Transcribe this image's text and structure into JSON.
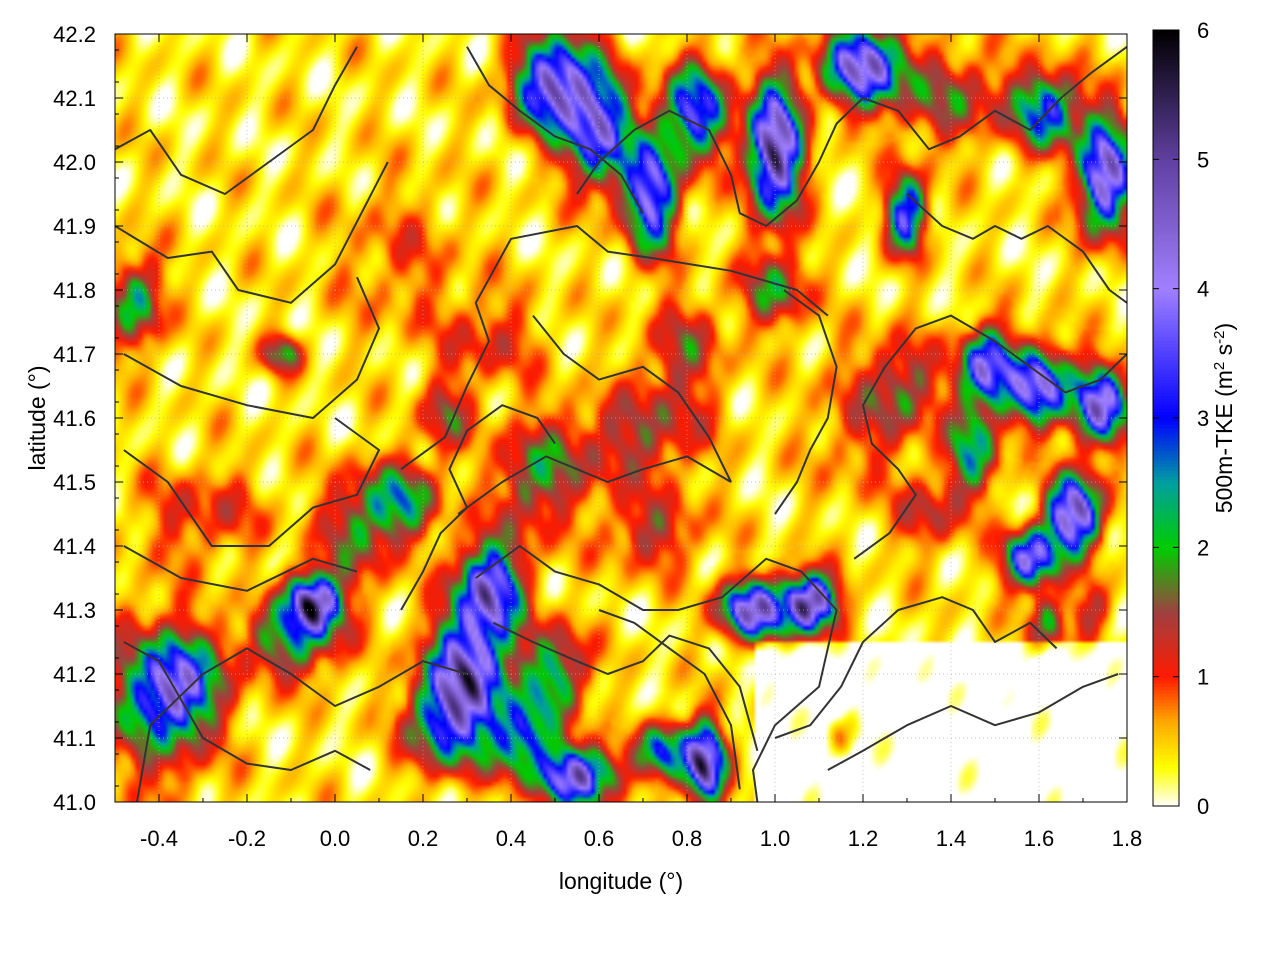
{
  "chart_data": {
    "type": "heatmap",
    "title": "",
    "xlabel": "longitude (°)",
    "ylabel": "latitude (°)",
    "colorbar_label": "500m-TKE (m² s⁻²)",
    "colorbar_label_parts": {
      "main": "500m-TKE (m",
      "sup1": "2",
      "mid": " s",
      "sup2": "-2",
      "end": ")"
    },
    "xlim": [
      -0.5,
      1.8
    ],
    "ylim": [
      41.0,
      42.2
    ],
    "clim": [
      0,
      6
    ],
    "grid": true,
    "x_ticks": [
      -0.4,
      -0.2,
      0.0,
      0.2,
      0.4,
      0.6,
      0.8,
      1.0,
      1.2,
      1.4,
      1.6,
      1.8
    ],
    "x_tick_labels": [
      "-0.4",
      "-0.2",
      "0.0",
      "0.2",
      "0.4",
      "0.6",
      "0.8",
      "1.0",
      "1.2",
      "1.4",
      "1.6",
      "1.8"
    ],
    "y_ticks": [
      41.0,
      41.1,
      41.2,
      41.3,
      41.4,
      41.5,
      41.6,
      41.7,
      41.8,
      41.9,
      42.0,
      42.1,
      42.2
    ],
    "y_tick_labels": [
      "41.0",
      "41.1",
      "41.2",
      "41.3",
      "41.4",
      "41.5",
      "41.6",
      "41.7",
      "41.8",
      "41.9",
      "42.0",
      "42.1",
      "42.2"
    ],
    "colorbar_ticks": [
      0,
      1,
      2,
      3,
      4,
      5,
      6
    ],
    "colorbar_tick_labels": [
      "0",
      "1",
      "2",
      "3",
      "4",
      "5",
      "6"
    ],
    "colormap": [
      {
        "value": 0.0,
        "color": "#ffffff"
      },
      {
        "value": 0.3,
        "color": "#ffff00"
      },
      {
        "value": 0.65,
        "color": "#ffaa00"
      },
      {
        "value": 1.0,
        "color": "#ff1a00"
      },
      {
        "value": 1.5,
        "color": "#a04040"
      },
      {
        "value": 2.0,
        "color": "#00cc00"
      },
      {
        "value": 2.5,
        "color": "#00a0a0"
      },
      {
        "value": 3.0,
        "color": "#0000ff"
      },
      {
        "value": 4.0,
        "color": "#a080ff"
      },
      {
        "value": 5.0,
        "color": "#6040a0"
      },
      {
        "value": 6.0,
        "color": "#000000"
      }
    ],
    "tke_hotspots": [
      {
        "lon": -0.36,
        "lat": 41.18,
        "tke": 3.8,
        "sx": 0.06,
        "sy": 0.05
      },
      {
        "lon": -0.42,
        "lat": 41.15,
        "tke": 1.4,
        "sx": 0.1,
        "sy": 0.1
      },
      {
        "lon": -0.05,
        "lat": 41.31,
        "tke": 5.8,
        "sx": 0.04,
        "sy": 0.03
      },
      {
        "lon": -0.1,
        "lat": 41.25,
        "tke": 2.0,
        "sx": 0.08,
        "sy": 0.04
      },
      {
        "lon": 0.05,
        "lat": 41.42,
        "tke": 1.5,
        "sx": 0.06,
        "sy": 0.06
      },
      {
        "lon": 0.3,
        "lat": 41.2,
        "tke": 4.8,
        "sx": 0.06,
        "sy": 0.06
      },
      {
        "lon": 0.35,
        "lat": 41.33,
        "tke": 4.6,
        "sx": 0.05,
        "sy": 0.05
      },
      {
        "lon": 0.25,
        "lat": 41.12,
        "tke": 2.6,
        "sx": 0.06,
        "sy": 0.05
      },
      {
        "lon": 0.42,
        "lat": 41.1,
        "tke": 3.0,
        "sx": 0.05,
        "sy": 0.04
      },
      {
        "lon": 0.55,
        "lat": 41.04,
        "tke": 4.8,
        "sx": 0.06,
        "sy": 0.03
      },
      {
        "lon": 0.5,
        "lat": 41.2,
        "tke": 2.4,
        "sx": 0.05,
        "sy": 0.05
      },
      {
        "lon": 0.84,
        "lat": 41.06,
        "tke": 5.6,
        "sx": 0.03,
        "sy": 0.04
      },
      {
        "lon": 0.75,
        "lat": 41.08,
        "tke": 3.0,
        "sx": 0.04,
        "sy": 0.03
      },
      {
        "lon": 1.08,
        "lat": 41.31,
        "tke": 5.8,
        "sx": 0.04,
        "sy": 0.03
      },
      {
        "lon": 0.95,
        "lat": 41.3,
        "tke": 5.0,
        "sx": 0.05,
        "sy": 0.03
      },
      {
        "lon": 0.72,
        "lat": 41.42,
        "tke": 1.2,
        "sx": 0.08,
        "sy": 0.04
      },
      {
        "lon": 0.45,
        "lat": 41.5,
        "tke": 1.6,
        "sx": 0.06,
        "sy": 0.06
      },
      {
        "lon": 0.15,
        "lat": 41.47,
        "tke": 2.2,
        "sx": 0.06,
        "sy": 0.04
      },
      {
        "lon": 0.6,
        "lat": 41.55,
        "tke": 1.0,
        "sx": 0.1,
        "sy": 0.05
      },
      {
        "lon": 0.75,
        "lat": 41.6,
        "tke": 1.0,
        "sx": 0.08,
        "sy": 0.06
      },
      {
        "lon": 0.8,
        "lat": 41.72,
        "tke": 1.1,
        "sx": 0.06,
        "sy": 0.05
      },
      {
        "lon": 1.0,
        "lat": 41.8,
        "tke": 1.8,
        "sx": 0.05,
        "sy": 0.04
      },
      {
        "lon": 0.35,
        "lat": 41.72,
        "tke": 0.9,
        "sx": 0.08,
        "sy": 0.05
      },
      {
        "lon": 0.15,
        "lat": 41.85,
        "tke": 0.6,
        "sx": 0.1,
        "sy": 0.08
      },
      {
        "lon": -0.45,
        "lat": 41.78,
        "tke": 2.2,
        "sx": 0.04,
        "sy": 0.05
      },
      {
        "lon": -0.12,
        "lat": 41.7,
        "tke": 1.8,
        "sx": 0.03,
        "sy": 0.02
      },
      {
        "lon": 0.5,
        "lat": 42.12,
        "tke": 4.8,
        "sx": 0.06,
        "sy": 0.05
      },
      {
        "lon": 0.6,
        "lat": 42.05,
        "tke": 4.0,
        "sx": 0.05,
        "sy": 0.06
      },
      {
        "lon": 0.72,
        "lat": 41.95,
        "tke": 4.2,
        "sx": 0.04,
        "sy": 0.06
      },
      {
        "lon": 0.82,
        "lat": 42.08,
        "tke": 3.6,
        "sx": 0.05,
        "sy": 0.05
      },
      {
        "lon": 1.0,
        "lat": 42.02,
        "tke": 5.7,
        "sx": 0.04,
        "sy": 0.07
      },
      {
        "lon": 1.2,
        "lat": 42.15,
        "tke": 4.8,
        "sx": 0.06,
        "sy": 0.04
      },
      {
        "lon": 1.4,
        "lat": 42.1,
        "tke": 1.4,
        "sx": 0.1,
        "sy": 0.05
      },
      {
        "lon": 1.62,
        "lat": 42.08,
        "tke": 3.2,
        "sx": 0.05,
        "sy": 0.04
      },
      {
        "lon": 1.75,
        "lat": 41.98,
        "tke": 5.0,
        "sx": 0.04,
        "sy": 0.06
      },
      {
        "lon": 1.3,
        "lat": 41.92,
        "tke": 3.8,
        "sx": 0.03,
        "sy": 0.04
      },
      {
        "lon": 1.48,
        "lat": 41.68,
        "tke": 4.2,
        "sx": 0.04,
        "sy": 0.04
      },
      {
        "lon": 1.6,
        "lat": 41.65,
        "tke": 4.4,
        "sx": 0.05,
        "sy": 0.04
      },
      {
        "lon": 1.74,
        "lat": 41.62,
        "tke": 4.6,
        "sx": 0.04,
        "sy": 0.04
      },
      {
        "lon": 1.68,
        "lat": 41.45,
        "tke": 5.4,
        "sx": 0.04,
        "sy": 0.04
      },
      {
        "lon": 1.58,
        "lat": 41.38,
        "tke": 4.4,
        "sx": 0.04,
        "sy": 0.03
      },
      {
        "lon": 1.45,
        "lat": 41.55,
        "tke": 2.4,
        "sx": 0.04,
        "sy": 0.05
      },
      {
        "lon": 1.3,
        "lat": 41.65,
        "tke": 1.4,
        "sx": 0.05,
        "sy": 0.05
      },
      {
        "lon": 1.35,
        "lat": 41.45,
        "tke": 1.2,
        "sx": 0.05,
        "sy": 0.04
      },
      {
        "lon": 1.62,
        "lat": 41.28,
        "tke": 1.8,
        "sx": 0.03,
        "sy": 0.03
      },
      {
        "lon": 1.72,
        "lat": 41.3,
        "tke": 1.2,
        "sx": 0.03,
        "sy": 0.03
      },
      {
        "lon": 0.25,
        "lat": 41.6,
        "tke": 1.4,
        "sx": 0.04,
        "sy": 0.04
      },
      {
        "lon": -0.3,
        "lat": 41.45,
        "tke": 0.9,
        "sx": 0.1,
        "sy": 0.05
      },
      {
        "lon": 1.2,
        "lat": 41.6,
        "tke": 0.8,
        "sx": 0.08,
        "sy": 0.08
      },
      {
        "lon": 1.15,
        "lat": 41.1,
        "tke": 0.9,
        "sx": 0.03,
        "sy": 0.03
      }
    ],
    "contour_lines": [
      [
        [
          -0.45,
          41.0
        ],
        [
          -0.42,
          41.12
        ],
        [
          -0.3,
          41.2
        ],
        [
          -0.2,
          41.24
        ],
        [
          -0.1,
          41.2
        ],
        [
          0.0,
          41.15
        ],
        [
          0.1,
          41.18
        ],
        [
          0.2,
          41.22
        ],
        [
          0.3,
          41.2
        ]
      ],
      [
        [
          -0.48,
          41.4
        ],
        [
          -0.35,
          41.35
        ],
        [
          -0.2,
          41.33
        ],
        [
          -0.05,
          41.38
        ],
        [
          0.05,
          41.36
        ]
      ],
      [
        [
          -0.48,
          41.55
        ],
        [
          -0.38,
          41.5
        ],
        [
          -0.28,
          41.4
        ],
        [
          -0.15,
          41.4
        ],
        [
          -0.05,
          41.46
        ],
        [
          0.05,
          41.48
        ],
        [
          0.1,
          41.55
        ],
        [
          0.0,
          41.6
        ]
      ],
      [
        [
          -0.48,
          41.7
        ],
        [
          -0.35,
          41.65
        ],
        [
          -0.2,
          41.62
        ],
        [
          -0.05,
          41.6
        ],
        [
          0.05,
          41.66
        ],
        [
          0.1,
          41.74
        ],
        [
          0.05,
          41.82
        ]
      ],
      [
        [
          -0.5,
          41.9
        ],
        [
          -0.38,
          41.85
        ],
        [
          -0.28,
          41.86
        ],
        [
          -0.22,
          41.8
        ],
        [
          -0.1,
          41.78
        ],
        [
          0.0,
          41.84
        ],
        [
          0.06,
          41.92
        ],
        [
          0.12,
          42.0
        ]
      ],
      [
        [
          -0.5,
          42.02
        ],
        [
          -0.42,
          42.05
        ],
        [
          -0.35,
          41.98
        ],
        [
          -0.25,
          41.95
        ],
        [
          -0.15,
          42.0
        ],
        [
          -0.05,
          42.05
        ],
        [
          0.0,
          42.12
        ],
        [
          0.05,
          42.18
        ]
      ],
      [
        [
          0.15,
          41.52
        ],
        [
          0.25,
          41.57
        ],
        [
          0.3,
          41.65
        ],
        [
          0.35,
          41.72
        ],
        [
          0.32,
          41.78
        ],
        [
          0.4,
          41.88
        ],
        [
          0.55,
          41.9
        ],
        [
          0.62,
          41.86
        ],
        [
          0.72,
          41.85
        ],
        [
          0.9,
          41.83
        ],
        [
          1.05,
          41.8
        ],
        [
          1.12,
          41.76
        ]
      ],
      [
        [
          0.45,
          41.76
        ],
        [
          0.52,
          41.7
        ],
        [
          0.6,
          41.66
        ],
        [
          0.7,
          41.68
        ],
        [
          0.78,
          41.64
        ],
        [
          0.85,
          41.57
        ],
        [
          0.9,
          41.5
        ]
      ],
      [
        [
          0.28,
          41.45
        ],
        [
          0.38,
          41.5
        ],
        [
          0.48,
          41.54
        ],
        [
          0.55,
          41.52
        ],
        [
          0.62,
          41.5
        ],
        [
          0.7,
          41.52
        ],
        [
          0.8,
          41.54
        ],
        [
          0.9,
          41.5
        ]
      ],
      [
        [
          0.32,
          41.35
        ],
        [
          0.42,
          41.4
        ],
        [
          0.5,
          41.36
        ],
        [
          0.6,
          41.34
        ],
        [
          0.7,
          41.3
        ],
        [
          0.78,
          41.3
        ],
        [
          0.88,
          41.32
        ],
        [
          0.98,
          41.38
        ],
        [
          1.06,
          41.36
        ],
        [
          1.14,
          41.3
        ],
        [
          1.1,
          41.18
        ],
        [
          1.0,
          41.12
        ],
        [
          0.95,
          41.05
        ],
        [
          0.96,
          41.0
        ]
      ],
      [
        [
          0.36,
          41.28
        ],
        [
          0.45,
          41.25
        ],
        [
          0.55,
          41.22
        ],
        [
          0.62,
          41.2
        ],
        [
          0.7,
          41.22
        ],
        [
          0.76,
          41.26
        ],
        [
          0.85,
          41.24
        ],
        [
          0.92,
          41.18
        ],
        [
          0.96,
          41.08
        ]
      ],
      [
        [
          0.6,
          41.3
        ],
        [
          0.68,
          41.28
        ],
        [
          0.76,
          41.24
        ],
        [
          0.84,
          41.2
        ],
        [
          0.9,
          41.12
        ],
        [
          0.92,
          41.02
        ]
      ],
      [
        [
          1.0,
          41.1
        ],
        [
          1.08,
          41.12
        ],
        [
          1.15,
          41.18
        ],
        [
          1.2,
          41.25
        ],
        [
          1.28,
          41.3
        ],
        [
          1.38,
          41.32
        ],
        [
          1.45,
          41.3
        ],
        [
          1.5,
          41.25
        ],
        [
          1.58,
          41.28
        ],
        [
          1.64,
          41.24
        ]
      ],
      [
        [
          1.12,
          41.05
        ],
        [
          1.2,
          41.08
        ],
        [
          1.3,
          41.12
        ],
        [
          1.4,
          41.15
        ],
        [
          1.5,
          41.12
        ],
        [
          1.6,
          41.14
        ],
        [
          1.7,
          41.18
        ],
        [
          1.78,
          41.2
        ]
      ],
      [
        [
          1.18,
          41.38
        ],
        [
          1.26,
          41.42
        ],
        [
          1.32,
          41.48
        ],
        [
          1.28,
          41.52
        ],
        [
          1.22,
          41.56
        ],
        [
          1.2,
          41.62
        ],
        [
          1.25,
          41.68
        ],
        [
          1.32,
          41.74
        ],
        [
          1.4,
          41.76
        ],
        [
          1.5,
          41.72
        ],
        [
          1.58,
          41.68
        ],
        [
          1.66,
          41.64
        ],
        [
          1.74,
          41.66
        ],
        [
          1.8,
          41.7
        ]
      ],
      [
        [
          1.0,
          41.45
        ],
        [
          1.05,
          41.5
        ],
        [
          1.08,
          41.55
        ],
        [
          1.12,
          41.6
        ],
        [
          1.14,
          41.68
        ],
        [
          1.1,
          41.76
        ],
        [
          1.02,
          41.8
        ]
      ],
      [
        [
          0.55,
          41.95
        ],
        [
          0.6,
          42.0
        ],
        [
          0.68,
          42.05
        ],
        [
          0.76,
          42.08
        ],
        [
          0.85,
          42.05
        ],
        [
          0.9,
          41.98
        ],
        [
          0.92,
          41.92
        ],
        [
          0.98,
          41.9
        ],
        [
          1.05,
          41.94
        ],
        [
          1.1,
          42.0
        ],
        [
          1.14,
          42.06
        ],
        [
          1.2,
          42.1
        ],
        [
          1.28,
          42.08
        ],
        [
          1.35,
          42.02
        ],
        [
          1.42,
          42.04
        ],
        [
          1.5,
          42.08
        ],
        [
          1.58,
          42.05
        ],
        [
          1.65,
          42.1
        ],
        [
          1.72,
          42.14
        ],
        [
          1.8,
          42.18
        ]
      ],
      [
        [
          0.3,
          42.18
        ],
        [
          0.35,
          42.12
        ],
        [
          0.42,
          42.08
        ],
        [
          0.5,
          42.04
        ],
        [
          0.58,
          42.02
        ],
        [
          0.65,
          41.98
        ],
        [
          0.7,
          41.92
        ]
      ],
      [
        [
          1.3,
          41.95
        ],
        [
          1.38,
          41.9
        ],
        [
          1.45,
          41.88
        ],
        [
          1.5,
          41.9
        ],
        [
          1.56,
          41.88
        ],
        [
          1.62,
          41.9
        ],
        [
          1.7,
          41.86
        ],
        [
          1.76,
          41.8
        ],
        [
          1.8,
          41.78
        ]
      ],
      [
        [
          -0.48,
          41.25
        ],
        [
          -0.4,
          41.22
        ],
        [
          -0.3,
          41.1
        ],
        [
          -0.2,
          41.06
        ],
        [
          -0.1,
          41.05
        ],
        [
          0.0,
          41.08
        ],
        [
          0.08,
          41.05
        ]
      ],
      [
        [
          0.15,
          41.3
        ],
        [
          0.2,
          41.36
        ],
        [
          0.24,
          41.42
        ],
        [
          0.3,
          41.46
        ],
        [
          0.26,
          41.52
        ],
        [
          0.3,
          41.58
        ],
        [
          0.38,
          41.62
        ],
        [
          0.46,
          41.6
        ],
        [
          0.5,
          41.56
        ]
      ]
    ]
  }
}
